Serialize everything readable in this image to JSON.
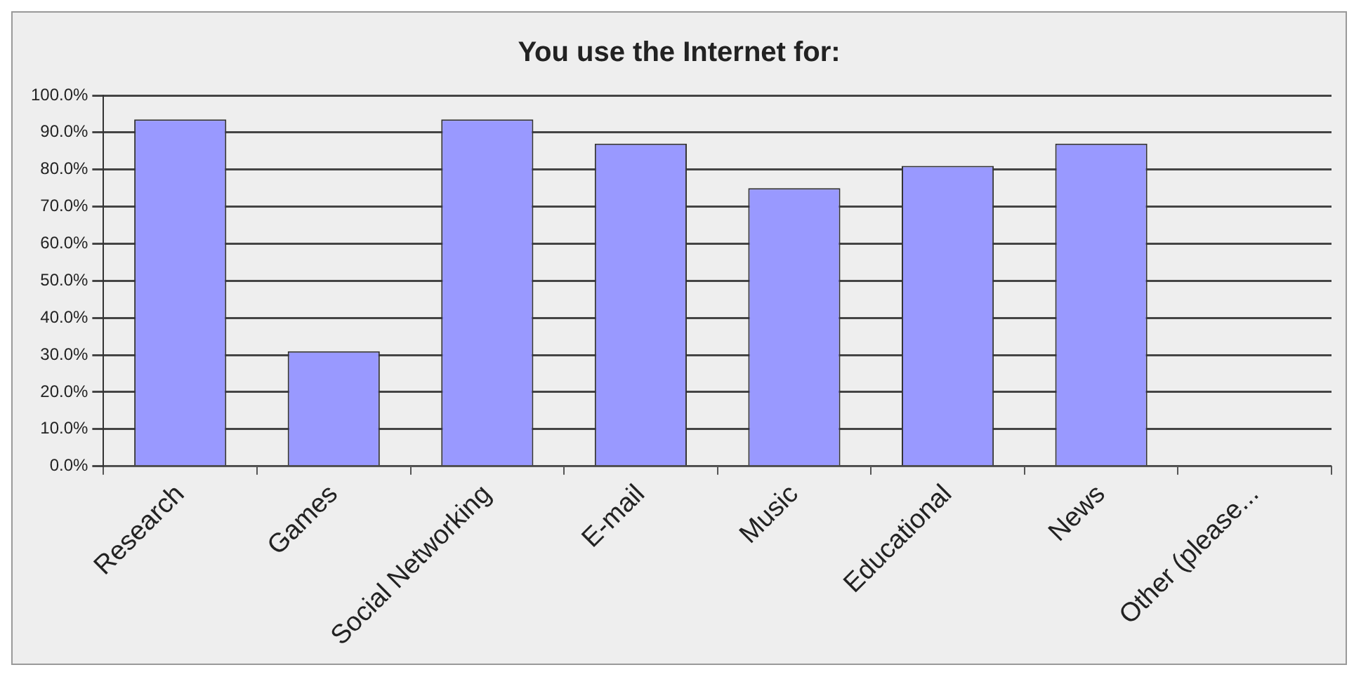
{
  "chart_data": {
    "type": "bar",
    "title": "You use the Internet for:",
    "categories": [
      "Research",
      "Games",
      "Social Networking",
      "E-mail",
      "Music",
      "Educational",
      "News",
      "Other (please..."
    ],
    "values": [
      93.5,
      31,
      93.5,
      87,
      75,
      81,
      87,
      0
    ],
    "color": "#9999ff",
    "ylim": [
      0,
      100
    ],
    "yticks": [
      {
        "value": 0,
        "label": "0.0%"
      },
      {
        "value": 10,
        "label": "10.0%"
      },
      {
        "value": 20,
        "label": "20.0%"
      },
      {
        "value": 30,
        "label": "30.0%"
      },
      {
        "value": 40,
        "label": "40.0%"
      },
      {
        "value": 50,
        "label": "50.0%"
      },
      {
        "value": 60,
        "label": "60.0%"
      },
      {
        "value": 70,
        "label": "70.0%"
      },
      {
        "value": 80,
        "label": "80.0%"
      },
      {
        "value": 90,
        "label": "90.0%"
      },
      {
        "value": 100,
        "label": "100.0%"
      }
    ],
    "grid": "y"
  }
}
